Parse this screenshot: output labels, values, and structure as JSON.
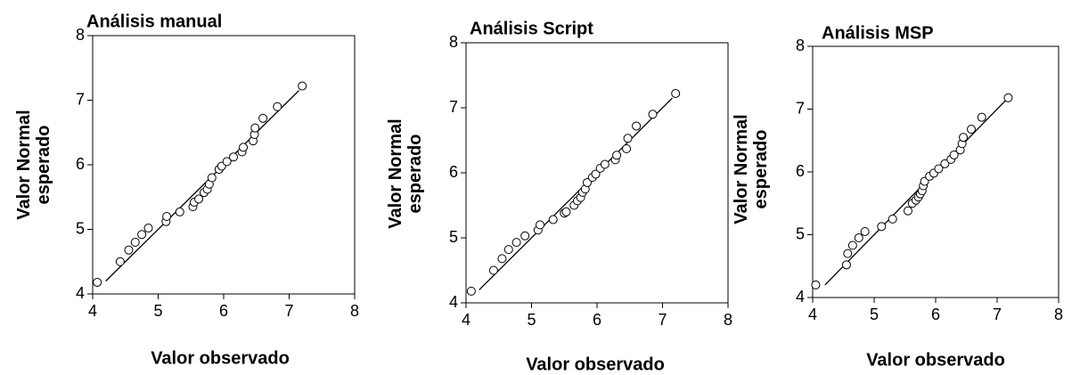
{
  "chart_data": [
    {
      "type": "scatter",
      "title": "Análisis manual",
      "xlabel": "Valor observado",
      "ylabel": "Valor Normal esperado",
      "xlim": [
        4,
        8
      ],
      "ylim": [
        4,
        8
      ],
      "xticks": [
        4,
        5,
        6,
        7,
        8
      ],
      "yticks": [
        4,
        5,
        6,
        7,
        8
      ],
      "points": {
        "x": [
          4.07,
          4.42,
          4.55,
          4.65,
          4.75,
          4.85,
          5.12,
          5.13,
          5.33,
          5.53,
          5.55,
          5.62,
          5.7,
          5.75,
          5.78,
          5.82,
          5.93,
          5.97,
          6.05,
          6.15,
          6.28,
          6.3,
          6.45,
          6.47,
          6.48,
          6.6,
          6.82,
          7.2
        ],
        "values": [
          4.18,
          4.5,
          4.68,
          4.8,
          4.92,
          5.02,
          5.12,
          5.2,
          5.27,
          5.35,
          5.42,
          5.47,
          5.57,
          5.62,
          5.7,
          5.8,
          5.93,
          5.98,
          6.05,
          6.12,
          6.2,
          6.27,
          6.37,
          6.47,
          6.57,
          6.72,
          6.9,
          7.22
        ]
      },
      "fit_line": {
        "x": [
          4.2,
          7.15
        ],
        "values": [
          4.2,
          7.15
        ]
      }
    },
    {
      "type": "scatter",
      "title": "Análisis Script",
      "xlabel": "Valor observado",
      "ylabel": "Valor Normal esperado",
      "xlim": [
        4,
        8
      ],
      "ylim": [
        4,
        8
      ],
      "xticks": [
        4,
        5,
        6,
        7,
        8
      ],
      "yticks": [
        4,
        5,
        6,
        7,
        8
      ],
      "points": {
        "x": [
          4.08,
          4.42,
          4.55,
          4.65,
          4.77,
          4.9,
          5.1,
          5.13,
          5.33,
          5.5,
          5.53,
          5.65,
          5.7,
          5.75,
          5.78,
          5.82,
          5.85,
          5.93,
          5.98,
          6.05,
          6.12,
          6.28,
          6.3,
          6.45,
          6.47,
          6.6,
          6.85,
          7.2
        ],
        "values": [
          4.18,
          4.5,
          4.68,
          4.82,
          4.93,
          5.03,
          5.12,
          5.2,
          5.28,
          5.38,
          5.4,
          5.5,
          5.57,
          5.62,
          5.7,
          5.75,
          5.85,
          5.93,
          5.98,
          6.07,
          6.13,
          6.2,
          6.27,
          6.37,
          6.53,
          6.72,
          6.9,
          7.22
        ]
      },
      "fit_line": {
        "x": [
          4.2,
          7.15
        ],
        "values": [
          4.2,
          7.15
        ]
      }
    },
    {
      "type": "scatter",
      "title": "Análisis MSP",
      "xlabel": "Valor observado",
      "ylabel": "Valor Normal esperado",
      "xlim": [
        4,
        8
      ],
      "ylim": [
        4,
        8
      ],
      "xticks": [
        4,
        5,
        6,
        7,
        8
      ],
      "yticks": [
        4,
        5,
        6,
        7,
        8
      ],
      "points": {
        "x": [
          4.05,
          4.55,
          4.57,
          4.65,
          4.75,
          4.85,
          5.12,
          5.3,
          5.55,
          5.62,
          5.68,
          5.72,
          5.75,
          5.78,
          5.8,
          5.82,
          5.9,
          5.97,
          6.05,
          6.15,
          6.25,
          6.3,
          6.4,
          6.43,
          6.45,
          6.58,
          6.75,
          7.18
        ],
        "values": [
          4.2,
          4.52,
          4.7,
          4.83,
          4.95,
          5.05,
          5.13,
          5.25,
          5.38,
          5.5,
          5.55,
          5.6,
          5.65,
          5.7,
          5.78,
          5.85,
          5.93,
          5.98,
          6.05,
          6.13,
          6.2,
          6.27,
          6.35,
          6.45,
          6.55,
          6.68,
          6.87,
          7.18
        ]
      },
      "fit_line": {
        "x": [
          4.2,
          7.15
        ],
        "values": [
          4.2,
          7.15
        ]
      }
    }
  ]
}
